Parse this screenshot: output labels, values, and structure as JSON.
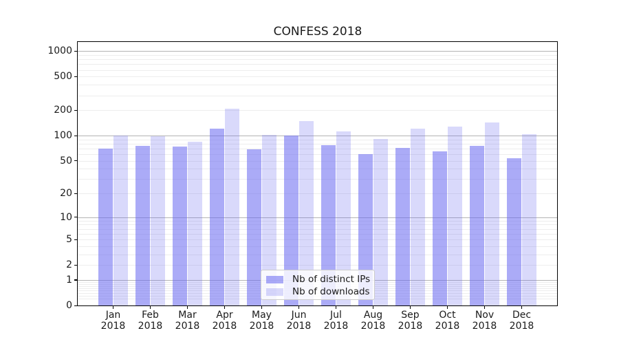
{
  "title": "CONFESS 2018",
  "legend": {
    "items": [
      {
        "label": "Nb of distinct IPs"
      },
      {
        "label": "Nb of downloads"
      }
    ]
  },
  "colors": {
    "bar_rgb": "102,102,240",
    "ips_alpha": 0.55,
    "downloads_alpha": 0.25,
    "grid_major": "#b3b3b3",
    "grid_minor": "#ededed",
    "axis": "#000000",
    "text": "#1a1a1a",
    "legend_border": "#cccccc",
    "legend_bg": "rgba(255,255,255,0.8)"
  },
  "axes": {
    "y_tick_labels": [
      "1000",
      "500",
      "200",
      "100",
      "50",
      "20",
      "10",
      "5",
      "2",
      "1",
      "0"
    ],
    "x_tick_labels_line1": [
      "Jan",
      "Feb",
      "Mar",
      "Apr",
      "May",
      "Jun",
      "Jul",
      "Aug",
      "Sep",
      "Oct",
      "Nov",
      "Dec"
    ],
    "x_tick_labels_line2": [
      "2018",
      "2018",
      "2018",
      "2018",
      "2018",
      "2018",
      "2018",
      "2018",
      "2018",
      "2018",
      "2018",
      "2018"
    ]
  },
  "chart_data": {
    "type": "bar",
    "title": "CONFESS 2018",
    "y_scale": "log1p",
    "categories": [
      "Jan 2018",
      "Feb 2018",
      "Mar 2018",
      "Apr 2018",
      "May 2018",
      "Jun 2018",
      "Jul 2018",
      "Aug 2018",
      "Sep 2018",
      "Oct 2018",
      "Nov 2018",
      "Dec 2018"
    ],
    "series": [
      {
        "name": "Nb of distinct IPs",
        "values": [
          70,
          76,
          74,
          122,
          68,
          100,
          77,
          60,
          71,
          65,
          75,
          54
        ]
      },
      {
        "name": "Nb of downloads",
        "values": [
          100,
          98,
          85,
          207,
          102,
          150,
          113,
          91,
          120,
          128,
          143,
          105
        ]
      }
    ],
    "yticks": [
      0,
      1,
      2,
      5,
      10,
      20,
      50,
      100,
      200,
      500,
      1000
    ],
    "ylim": [
      0,
      1290
    ],
    "xlabel": "",
    "ylabel": "",
    "grid": "on",
    "legend_position": "lower center"
  }
}
